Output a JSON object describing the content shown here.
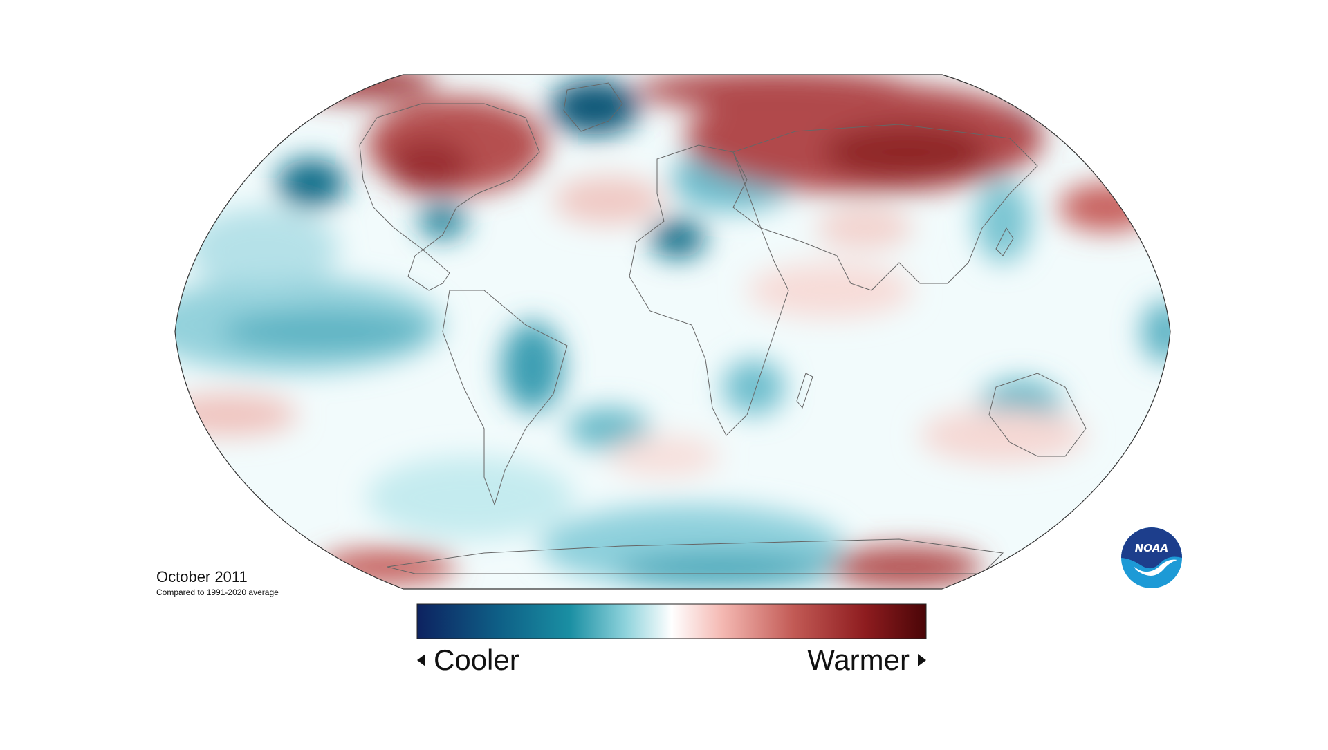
{
  "map": {
    "title": "October 2011",
    "subtitle": "Compared to 1991-2020 average",
    "projection": "Robinson",
    "legend": {
      "cool_label": "Cooler",
      "warm_label": "Warmer",
      "gradient_colors": [
        "#0d2260",
        "#0e5f86",
        "#1a8fa3",
        "#8fd3dc",
        "#ffffff",
        "#f4b8b2",
        "#c25a55",
        "#8e1c1f",
        "#4a0507"
      ]
    },
    "anomaly_colors": {
      "cool_strong": "#0a5b7a",
      "cool_mid": "#3ea0b4",
      "cool_light": "#c4ebef",
      "neutral": "#f4fbfc",
      "warm_light": "#f6d3cf",
      "warm_mid": "#c7605d",
      "warm_strong": "#8a1f22"
    },
    "logo_text": "NOAA",
    "logo_colors": [
      "#1d3e8c",
      "#1d9ad6",
      "#ffffff"
    ]
  }
}
